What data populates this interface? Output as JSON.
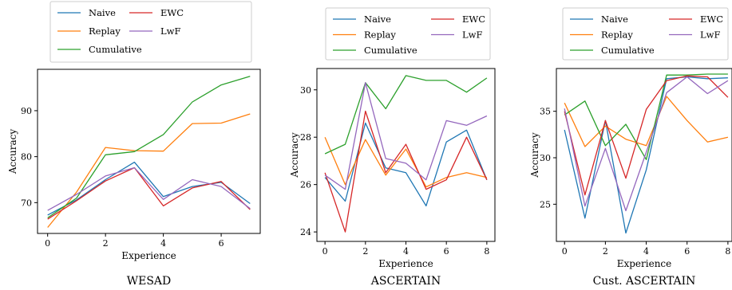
{
  "series_colors": {
    "Naive": "#1f77b4",
    "Replay": "#ff7f0e",
    "Cumulative": "#2ca02c",
    "EWC": "#d62728",
    "LwF": "#9467bd"
  },
  "chart_data": [
    {
      "type": "line",
      "title": "WESAD",
      "xlabel": "Experience",
      "ylabel": "Accuracy",
      "xlim": [
        -0.35,
        7.35
      ],
      "ylim": [
        63.3,
        99.0
      ],
      "xticks": [
        0,
        2,
        4,
        6
      ],
      "yticks": [
        70,
        80,
        90
      ],
      "grid": false,
      "legend": "top-outside",
      "x": [
        0,
        1,
        2,
        3,
        4,
        5,
        6,
        7
      ],
      "series": [
        {
          "name": "Naive",
          "values": [
            67.3,
            70.6,
            75.0,
            78.8,
            71.3,
            73.5,
            74.4,
            69.8
          ]
        },
        {
          "name": "Replay",
          "values": [
            64.6,
            72.3,
            82.0,
            81.3,
            81.2,
            87.2,
            87.3,
            89.3
          ]
        },
        {
          "name": "Cumulative",
          "values": [
            66.7,
            71.0,
            80.4,
            81.1,
            84.8,
            91.9,
            95.6,
            97.5
          ]
        },
        {
          "name": "EWC",
          "values": [
            66.4,
            70.4,
            74.7,
            77.6,
            69.3,
            73.2,
            74.6,
            68.5
          ]
        },
        {
          "name": "LwF",
          "values": [
            68.3,
            71.8,
            75.8,
            77.6,
            70.7,
            75.0,
            73.5,
            68.7
          ]
        }
      ]
    },
    {
      "type": "line",
      "title": "ASCERTAIN",
      "xlabel": "Experience",
      "ylabel": "Accuracy",
      "xlim": [
        -0.4,
        8.4
      ],
      "ylim": [
        23.6,
        30.9
      ],
      "xticks": [
        0,
        2,
        4,
        6,
        8
      ],
      "yticks": [
        24,
        26,
        28,
        30
      ],
      "grid": false,
      "legend": "top-outside",
      "x": [
        0,
        1,
        2,
        3,
        4,
        5,
        6,
        7,
        8
      ],
      "series": [
        {
          "name": "Naive",
          "values": [
            26.3,
            25.3,
            28.6,
            26.7,
            26.5,
            25.1,
            27.8,
            28.3,
            26.2
          ]
        },
        {
          "name": "Replay",
          "values": [
            28.0,
            26.0,
            27.9,
            26.4,
            27.5,
            25.9,
            26.3,
            26.5,
            26.3
          ]
        },
        {
          "name": "Cumulative",
          "values": [
            27.3,
            27.7,
            30.3,
            29.2,
            30.6,
            30.4,
            30.4,
            29.9,
            30.5
          ]
        },
        {
          "name": "EWC",
          "values": [
            26.5,
            24.0,
            29.1,
            26.5,
            27.7,
            25.8,
            26.2,
            28.0,
            26.2
          ]
        },
        {
          "name": "LwF",
          "values": [
            26.4,
            25.8,
            30.3,
            27.1,
            26.9,
            26.2,
            28.7,
            28.5,
            28.9
          ]
        }
      ]
    },
    {
      "type": "line",
      "title": "Cust. ASCERTAIN",
      "xlabel": "Experience",
      "ylabel": "Accuracy",
      "xlim": [
        -0.4,
        8.2
      ],
      "ylim": [
        21.0,
        39.6
      ],
      "xticks": [
        0,
        2,
        4,
        6,
        8
      ],
      "yticks": [
        25,
        30,
        35
      ],
      "grid": false,
      "legend": "top-outside",
      "x": [
        0,
        1,
        2,
        3,
        4,
        5,
        6,
        7,
        8
      ],
      "series": [
        {
          "name": "Naive",
          "values": [
            33.0,
            23.5,
            34.0,
            21.9,
            28.7,
            38.5,
            38.7,
            38.5,
            38.6
          ]
        },
        {
          "name": "Replay",
          "values": [
            35.9,
            31.2,
            33.4,
            32.0,
            31.3,
            36.6,
            34.0,
            31.7,
            32.2
          ]
        },
        {
          "name": "Cumulative",
          "values": [
            34.6,
            36.1,
            31.3,
            33.6,
            29.8,
            38.9,
            38.9,
            39.0,
            39.0
          ]
        },
        {
          "name": "EWC",
          "values": [
            35.0,
            26.0,
            34.0,
            27.8,
            35.2,
            38.3,
            38.8,
            38.7,
            36.5
          ]
        },
        {
          "name": "LwF",
          "values": [
            35.3,
            24.8,
            31.0,
            24.3,
            30.6,
            37.0,
            38.7,
            36.9,
            38.3
          ]
        }
      ]
    }
  ]
}
